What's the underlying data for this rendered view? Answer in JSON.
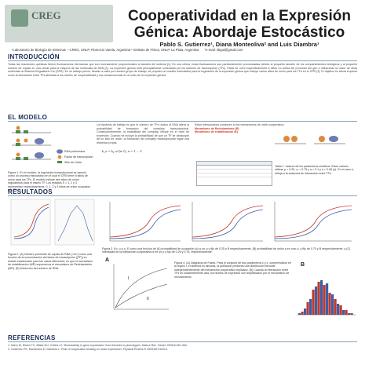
{
  "header": {
    "logo_text": "CREG",
    "title_line1": "Cooperatividad en la Expresión",
    "title_line2": "Génica: Abordaje Estocástico",
    "authors": "Pablo S. Gutierrez¹, Diana Monteoliva² and Luis Diambra¹",
    "affiliation1": "¹Laboratorio de Biología de Sistemas – CREG, UNLP, Florencio Varela, Argentina  ² Instituto de Física, UNLP, La Plata, Argentina",
    "email": "*e-mail: sbgut@gmail.com"
  },
  "intro": {
    "heading": "INTRODUCCIÓN",
    "text": "Todas las reacciones químicas tienen fluctuaciones intrínsecas que son inversamente proporcionales al tamaño del sistema [1]. En una célula, estas fluctuaciones son particularmente pronunciadas debido al pequeño tamaño de los compartimientos biológicos y al pequeño número de copias en una célula para la mayoría de las moléculas de ADN [2]. La expresión génica está principalmente controlada por los factores de transcripción (TFs). Estas se unen específicamente a sitios río arriba del promotor del gen e influencian la unión de otras moléculas al Sistema Regulatorio Cis (CRS). En un trabajo previo, llevado a cabo por nuestro grupo de trabajo, se propuso un modelo estocástico para la regulación de la expresión génica que incluye varios sitios de unión para los TFs en el CRS [3]. El objetivo es ahora explorar como la interacción entre TFs afectada a los niveles de cooperatividad y sus consecuencias en el ruido de la expresión génica."
  },
  "model": {
    "heading": "EL MODELO",
    "legend": [
      "RNA polimerasa",
      "Factor de transcripción",
      "Sitio de Unión"
    ],
    "fig1_caption": "Figura 1. En el modelo, la regulación transcripcional se asumió como un proceso estocástico en el cual el CRS tiene N sitios de unión para los TFs. El modelo incluye tres sitios de unión regulatorios para el mismo TF. Los estados S = 1, 2 y 3 representan respectivamente, 0, 1, 2 y 3 sitios de unión ocupados por TFs.",
    "col2_text": "La hipótesis de trabajo es que el número de TFs unidos al DNA altera la probabilidad de formación del complejo transcripcional. Consecuentemente, la estabilidad del complejo influye en el nivel de expresión. Cuando se incluye la probabilidad de que un TF se desacople de un sitio de unión, la formación del complejo transcripcional sigue una dinámica propia.",
    "equation": "k_n = k₀ ω^(n-1),  n = 1 ... 3",
    "col3_heading": "Estos interacciones conducen a dos mecanismos de unión cooperativa:",
    "mech1": "Mecanismo de Reclutamiento (R)",
    "mech2": "Mecanismo de estabilización (E)",
    "table_caption": "Tabla 1. Valores de los parámetros cinéticos. Estos valores utilizan p = 0.25, ω = 0.75 y α = 0.1 y d = 0.06 (s). En el caso k, refleja a la ausencia de interacción entre TFs."
  },
  "results": {
    "heading": "RESULTADOS",
    "fig2_caption": "Figura 2. (A) Número promedio de copias de RNA (<m>) como una función de la concentración del factor de transcripción ([TF]) en estado estacionario para los casos diferentes, en que el mecanismo de estabilización (MR) suponemos el mecanismo de Reclutamiento (MR). (B) Detección del número de RNA.",
    "fig3_caption": "Figura 3. Ko, ω y κ_E como una función de (A) probabilidad de ocupación (p) a un ω y fijo de 0.25 y B respectivamente, (B) probabilidad de unión p en una ω, y fijo de 0.75 y B respectivamente, y (C) intensidad de la interacción cooperativa α en un p y fijo de 0.25 y 0.75, respectivamente.",
    "fig4_caption": "Figura 4. (A) Diagrama de Fases. Para el conjunto de dos parámetros ε y κ, comprendidos en la región I, el sistema es bimodal, la población presenta una distribución bimodal independientemente del mecanismo cooperativo implicado. (B) Cuando la interacción entre TFs es suficientemente alta, los niveles de expresión son amplificados por el mecanismo de reclutamiento."
  },
  "refs": {
    "heading": "REFERENCIAS",
    "items": [
      "1. Kærn M, Elston TC, Blake WJ, Collins JJ. Stochasticity in gene expression: from theories to phenotypes. Nature Rev. Genet. 2005;6:451-464.",
      "2. Gutierrez PS, Monteoliva D, Diambra L. Role of cooperative binding on noise expression. Physical Review E 2009;80:011914."
    ]
  },
  "chart_data": [
    {
      "type": "line",
      "panel": "A",
      "series": [
        {
          "values_x": [
            0,
            1,
            2,
            3,
            4,
            5,
            6,
            7,
            8,
            9,
            10
          ],
          "values_y": [
            0.02,
            0.05,
            0.12,
            0.28,
            0.52,
            0.74,
            0.86,
            0.93,
            0.96,
            0.98,
            0.99
          ]
        },
        {
          "values_x": [
            0,
            1,
            2,
            3,
            4,
            5,
            6,
            7,
            8,
            9,
            10
          ],
          "values_y": [
            0.01,
            0.03,
            0.07,
            0.16,
            0.35,
            0.58,
            0.76,
            0.88,
            0.94,
            0.97,
            0.98
          ]
        }
      ]
    },
    {
      "type": "bar",
      "panel": "B",
      "series": [
        {
          "values": [
            0.01,
            0.04,
            0.1,
            0.18,
            0.22,
            0.2,
            0.13,
            0.07,
            0.03,
            0.01
          ]
        },
        {
          "values": [
            0.02,
            0.08,
            0.16,
            0.21,
            0.19,
            0.14,
            0.1,
            0.06,
            0.03,
            0.01
          ]
        }
      ]
    }
  ],
  "colors": {
    "accent": "#1a2a55",
    "red": "#c0392b",
    "blue": "#3a5fa8",
    "green": "#4a8a4a"
  }
}
